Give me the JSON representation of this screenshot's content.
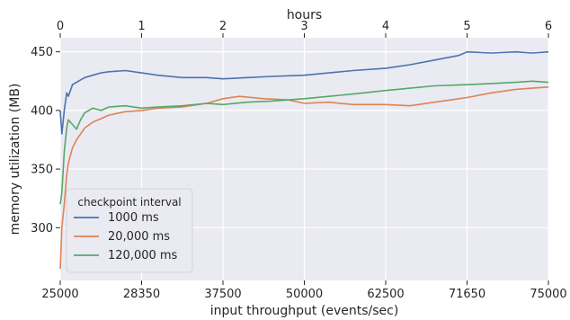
{
  "chart_data": {
    "type": "line",
    "xlabel": "input throughput (events/sec)",
    "x2label": "hours",
    "ylabel": "memory utilization (MB)",
    "title": "",
    "grid": true,
    "legend_placement": "bottom-left",
    "legend_title": "checkpoint interval",
    "xlim_hours": [
      0,
      6
    ],
    "ylim": [
      255,
      462
    ],
    "x_tick_labels": [
      "25000",
      "28350",
      "37500",
      "50000",
      "62500",
      "71650",
      "75000"
    ],
    "x_tick_hours": [
      0,
      1,
      2,
      3,
      4,
      5,
      6
    ],
    "x2_tick_labels": [
      "0",
      "1",
      "2",
      "3",
      "4",
      "5",
      "6"
    ],
    "y_ticks": [
      300,
      350,
      400,
      450
    ],
    "y_tick_labels": [
      "300",
      "350",
      "400",
      "450"
    ],
    "series": [
      {
        "name": "1000 ms",
        "color": "#4c72b0",
        "hours": [
          0,
          0.02,
          0.05,
          0.08,
          0.1,
          0.15,
          0.2,
          0.3,
          0.4,
          0.5,
          0.6,
          0.8,
          1.0,
          1.2,
          1.5,
          1.8,
          2.0,
          2.3,
          2.6,
          3.0,
          3.3,
          3.6,
          4.0,
          4.3,
          4.6,
          4.9,
          5.0,
          5.3,
          5.6,
          5.8,
          6.0
        ],
        "values": [
          400,
          380,
          400,
          415,
          412,
          422,
          424,
          428,
          430,
          432,
          433,
          434,
          432,
          430,
          428,
          428,
          427,
          428,
          429,
          430,
          432,
          434,
          436,
          439,
          443,
          447,
          450,
          449,
          450,
          449,
          450
        ]
      },
      {
        "name": "20,000 ms",
        "color": "#dd8452",
        "hours": [
          0,
          0.02,
          0.05,
          0.08,
          0.1,
          0.15,
          0.2,
          0.3,
          0.4,
          0.5,
          0.6,
          0.8,
          1.0,
          1.2,
          1.5,
          1.8,
          2.0,
          2.2,
          2.5,
          2.8,
          3.0,
          3.3,
          3.6,
          4.0,
          4.3,
          4.6,
          5.0,
          5.3,
          5.6,
          5.8,
          6.0
        ],
        "values": [
          265,
          300,
          320,
          345,
          355,
          368,
          375,
          385,
          390,
          393,
          396,
          399,
          400,
          402,
          403,
          406,
          410,
          412,
          410,
          409,
          406,
          407,
          405,
          405,
          404,
          407,
          411,
          415,
          418,
          419,
          420
        ]
      },
      {
        "name": "120,000 ms",
        "color": "#55a868",
        "hours": [
          0,
          0.02,
          0.05,
          0.08,
          0.1,
          0.15,
          0.2,
          0.25,
          0.3,
          0.4,
          0.5,
          0.6,
          0.8,
          1.0,
          1.2,
          1.5,
          1.8,
          2.0,
          2.3,
          2.6,
          3.0,
          3.3,
          3.6,
          4.0,
          4.3,
          4.6,
          5.0,
          5.3,
          5.6,
          5.8,
          6.0
        ],
        "values": [
          320,
          330,
          365,
          385,
          392,
          388,
          384,
          392,
          398,
          402,
          400,
          403,
          404,
          402,
          403,
          404,
          406,
          405,
          407,
          408,
          410,
          412,
          414,
          417,
          419,
          421,
          422,
          423,
          424,
          425,
          424
        ]
      }
    ]
  }
}
